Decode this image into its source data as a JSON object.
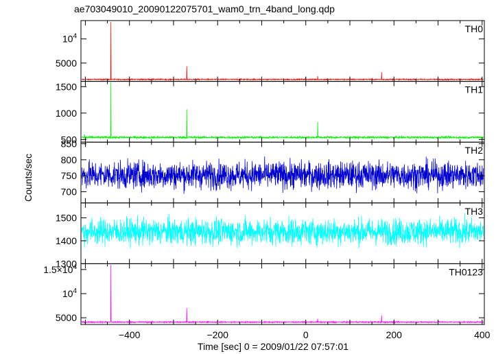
{
  "chart_data": {
    "type": "line",
    "title": "ae703049010_20090122075701_wam0_trn_4band_long.qdp",
    "xlabel": "Time [sec] 0 = 2009/01/22 07:57:01",
    "ylabel": "Counts/sec",
    "xlim": [
      -510,
      405
    ],
    "x_ticks": [
      -400,
      -200,
      0,
      200,
      400
    ],
    "x_tick_labels": [
      "−400",
      "−200",
      "0",
      "200",
      "400"
    ],
    "panels": [
      {
        "name": "TH0",
        "color": "#ff0000",
        "ylim": [
          1200,
          13800
        ],
        "y_ticks": [
          5000,
          10000
        ],
        "y_tick_labels": [
          "5000",
          "10^4"
        ],
        "baseline": 1600,
        "noise": 80,
        "spikes": [
          [
            -442,
            13500
          ],
          [
            -270,
            4300
          ],
          [
            0,
            2100
          ],
          [
            27,
            2300
          ],
          [
            172,
            3100
          ],
          [
            398,
            1900
          ]
        ]
      },
      {
        "name": "TH1",
        "color": "#00ee00",
        "ylim": [
          450,
          1600
        ],
        "y_ticks": [
          500,
          1000,
          1500
        ],
        "y_tick_labels": [
          "500",
          "1000",
          "1500"
        ],
        "baseline": 540,
        "noise": 15,
        "spikes": [
          [
            -442,
            1580
          ],
          [
            -270,
            1070
          ],
          [
            27,
            830
          ],
          [
            -502,
            600
          ]
        ]
      },
      {
        "name": "TH2",
        "color": "#0000cc",
        "ylim": [
          665,
          855
        ],
        "y_ticks": [
          700,
          750,
          800,
          850
        ],
        "y_tick_labels": [
          "700",
          "750",
          "800",
          "850"
        ],
        "baseline": 752,
        "noise": 30,
        "spikes": []
      },
      {
        "name": "TH3",
        "color": "#00ffff",
        "ylim": [
          1300,
          1565
        ],
        "y_ticks": [
          1300,
          1400,
          1500
        ],
        "y_tick_labels": [
          "1300",
          "1400",
          "1500"
        ],
        "baseline": 1440,
        "noise": 40,
        "spikes": []
      },
      {
        "name": "TH0123",
        "color": "#ff00ff",
        "ylim": [
          3600,
          16200
        ],
        "y_ticks": [
          5000,
          10000,
          15000
        ],
        "y_tick_labels": [
          "5000",
          "10^4",
          "1.5×10^4"
        ],
        "baseline": 4100,
        "noise": 90,
        "spikes": [
          [
            -442,
            16000
          ],
          [
            -270,
            7000
          ],
          [
            27,
            4800
          ],
          [
            172,
            5500
          ]
        ]
      }
    ]
  }
}
